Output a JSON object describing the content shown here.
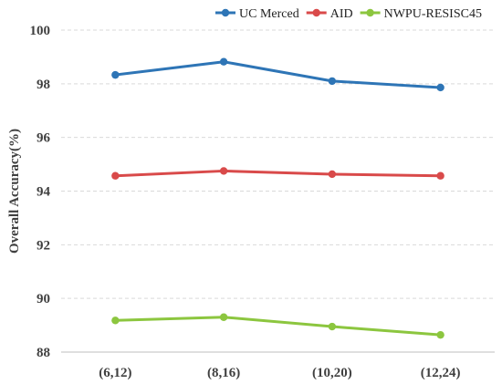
{
  "chart_data": {
    "type": "line",
    "categories": [
      "(6,12)",
      "(8,16)",
      "(10,20)",
      "(12,24)"
    ],
    "series": [
      {
        "name": "UC Merced",
        "color": "#2e75b6",
        "values": [
          98.33,
          98.82,
          98.1,
          97.86
        ]
      },
      {
        "name": "AID",
        "color": "#d94a4a",
        "values": [
          94.57,
          94.75,
          94.63,
          94.57
        ]
      },
      {
        "name": "NWPU-RESISC45",
        "color": "#8cc63f",
        "values": [
          89.18,
          89.3,
          88.95,
          88.64
        ]
      }
    ],
    "xlabel": "",
    "ylabel": "Overall Accuracy(%)",
    "ylim": [
      88,
      100
    ],
    "yticks": [
      "88",
      "90",
      "92",
      "94",
      "96",
      "98",
      "100"
    ],
    "grid": "horizontal-dashed",
    "legend_position": "top-right"
  }
}
